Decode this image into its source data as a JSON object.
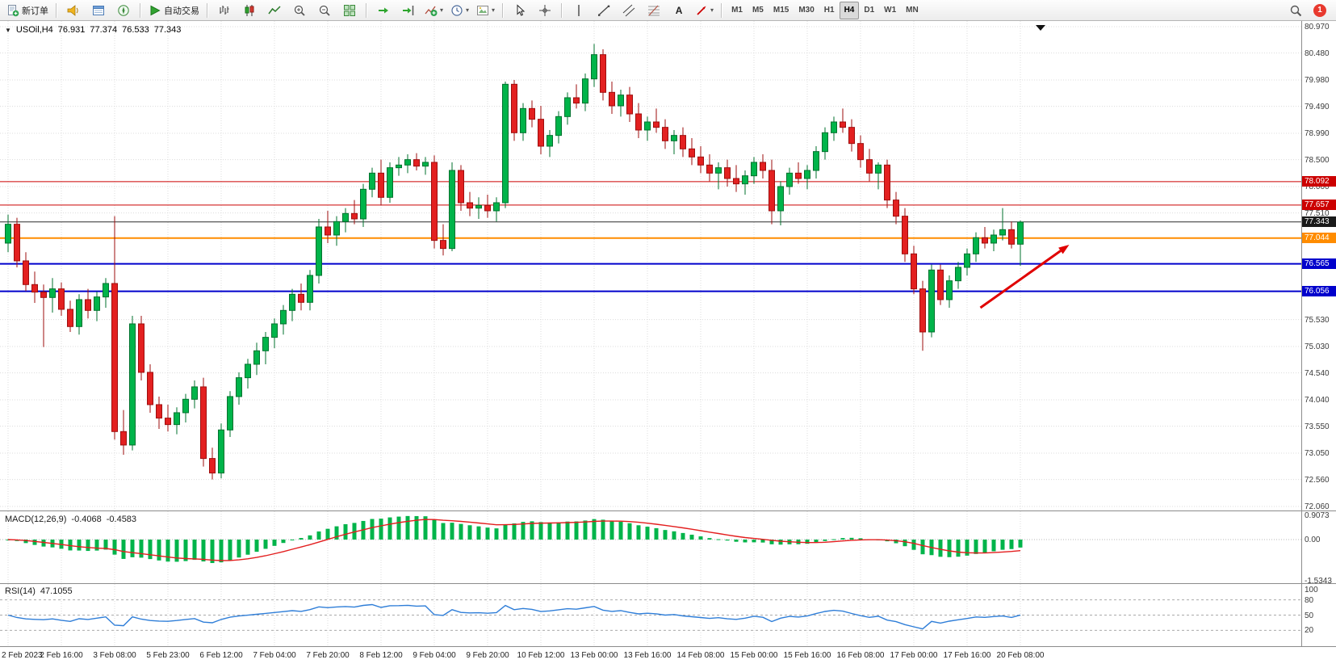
{
  "window": {
    "title_marker": "▼",
    "corner_marker": "▼"
  },
  "toolbar": {
    "new_order": "新订单",
    "autotrading": "自动交易",
    "caret": "▾",
    "timeframes": [
      "M1",
      "M5",
      "M15",
      "M30",
      "H1",
      "H4",
      "D1",
      "W1",
      "MN"
    ],
    "active_timeframe": "H4",
    "notification_count": "1"
  },
  "chart_header": {
    "symbol_period": "USOil,H4",
    "open": "76.931",
    "high": "77.374",
    "low": "76.533",
    "close": "77.343"
  },
  "indicator_labels": {
    "macd_name": "MACD(12,26,9)",
    "macd_value": "-0.4068",
    "macd_signal": "-0.4583",
    "rsi_name": "RSI(14)",
    "rsi_value": "47.1055"
  },
  "axes": {
    "price_ticks": [
      80.97,
      80.48,
      79.98,
      79.49,
      78.99,
      78.5,
      78.0,
      77.51,
      75.53,
      75.03,
      74.54,
      74.04,
      73.55,
      73.05,
      72.56,
      72.06
    ],
    "macd_ticks": [
      {
        "label": "0.9073",
        "value": 0.9073
      },
      {
        "label": "0.00",
        "value": 0
      },
      {
        "label": "-1.5343",
        "value": -1.5343
      }
    ],
    "rsi_ticks": [
      {
        "label": "100",
        "value": 100
      },
      {
        "label": "80",
        "value": 80
      },
      {
        "label": "50",
        "value": 50
      },
      {
        "label": "20",
        "value": 20
      }
    ],
    "time_labels": [
      "2 Feb 2023",
      "2 Feb 16:00",
      "3 Feb 08:00",
      "5 Feb 23:00",
      "6 Feb 12:00",
      "7 Feb 04:00",
      "7 Feb 20:00",
      "8 Feb 12:00",
      "9 Feb 04:00",
      "9 Feb 20:00",
      "10 Feb 12:00",
      "13 Feb 00:00",
      "13 Feb 16:00",
      "14 Feb 08:00",
      "15 Feb 00:00",
      "15 Feb 16:00",
      "16 Feb 08:00",
      "17 Feb 00:00",
      "17 Feb 16:00",
      "20 Feb 08:00"
    ]
  },
  "chart_data": {
    "type": "candlestick",
    "symbol": "USOil",
    "period": "H4",
    "bars_per_label": 6,
    "ylim": [
      71.99,
      81.075
    ],
    "ohlc": [
      [
        76.95,
        77.48,
        76.78,
        77.3
      ],
      [
        77.3,
        77.42,
        76.5,
        76.62
      ],
      [
        76.62,
        76.78,
        76.06,
        76.18
      ],
      [
        76.18,
        76.42,
        75.84,
        76.04
      ],
      [
        76.04,
        76.18,
        75.02,
        75.94
      ],
      [
        75.94,
        76.3,
        75.66,
        76.1
      ],
      [
        76.1,
        76.22,
        75.6,
        75.72
      ],
      [
        75.72,
        75.88,
        75.3,
        75.4
      ],
      [
        75.4,
        76.0,
        75.25,
        75.9
      ],
      [
        75.9,
        76.1,
        75.55,
        75.7
      ],
      [
        75.7,
        76.05,
        75.5,
        75.95
      ],
      [
        75.95,
        76.3,
        75.75,
        76.2
      ],
      [
        76.2,
        77.45,
        73.3,
        73.45
      ],
      [
        73.45,
        73.85,
        73.02,
        73.2
      ],
      [
        73.2,
        75.6,
        73.1,
        75.45
      ],
      [
        75.45,
        75.6,
        74.4,
        74.55
      ],
      [
        74.55,
        74.7,
        73.8,
        73.95
      ],
      [
        73.95,
        74.1,
        73.5,
        73.7
      ],
      [
        73.7,
        73.95,
        73.45,
        73.58
      ],
      [
        73.58,
        73.9,
        73.4,
        73.8
      ],
      [
        73.8,
        74.15,
        73.62,
        74.05
      ],
      [
        74.05,
        74.4,
        73.88,
        74.28
      ],
      [
        74.28,
        74.45,
        72.8,
        72.95
      ],
      [
        72.95,
        73.15,
        72.56,
        72.68
      ],
      [
        72.68,
        73.6,
        72.58,
        73.48
      ],
      [
        73.48,
        74.2,
        73.35,
        74.1
      ],
      [
        74.1,
        74.55,
        73.95,
        74.45
      ],
      [
        74.45,
        74.8,
        74.25,
        74.7
      ],
      [
        74.7,
        75.1,
        74.5,
        74.95
      ],
      [
        74.95,
        75.3,
        74.7,
        75.2
      ],
      [
        75.2,
        75.55,
        75.0,
        75.45
      ],
      [
        75.45,
        75.8,
        75.25,
        75.7
      ],
      [
        75.7,
        76.1,
        75.5,
        76.0
      ],
      [
        76.0,
        76.2,
        75.7,
        75.85
      ],
      [
        75.85,
        76.45,
        75.7,
        76.35
      ],
      [
        76.35,
        77.4,
        76.2,
        77.25
      ],
      [
        77.25,
        77.55,
        76.95,
        77.1
      ],
      [
        77.1,
        77.45,
        76.9,
        77.35
      ],
      [
        77.35,
        77.6,
        77.15,
        77.5
      ],
      [
        77.5,
        77.75,
        77.3,
        77.4
      ],
      [
        77.4,
        78.05,
        77.25,
        77.95
      ],
      [
        77.95,
        78.35,
        77.8,
        78.25
      ],
      [
        78.25,
        78.5,
        77.65,
        77.8
      ],
      [
        77.8,
        78.45,
        77.7,
        78.35
      ],
      [
        78.35,
        78.55,
        78.2,
        78.4
      ],
      [
        78.4,
        78.6,
        78.25,
        78.5
      ],
      [
        78.5,
        78.62,
        78.3,
        78.38
      ],
      [
        78.38,
        78.55,
        78.22,
        78.45
      ],
      [
        78.45,
        78.58,
        76.85,
        77.0
      ],
      [
        77.0,
        77.3,
        76.72,
        76.85
      ],
      [
        76.85,
        78.45,
        76.8,
        78.3
      ],
      [
        78.3,
        78.4,
        77.55,
        77.7
      ],
      [
        77.7,
        77.9,
        77.45,
        77.6
      ],
      [
        77.6,
        77.8,
        77.4,
        77.65
      ],
      [
        77.65,
        77.85,
        77.42,
        77.55
      ],
      [
        77.55,
        77.8,
        77.35,
        77.7
      ],
      [
        77.7,
        79.95,
        77.6,
        79.9
      ],
      [
        79.9,
        79.98,
        78.85,
        79.0
      ],
      [
        79.0,
        79.55,
        78.85,
        79.45
      ],
      [
        79.45,
        79.6,
        79.1,
        79.25
      ],
      [
        79.25,
        79.5,
        78.6,
        78.75
      ],
      [
        78.75,
        79.05,
        78.55,
        78.95
      ],
      [
        78.95,
        79.4,
        78.8,
        79.3
      ],
      [
        79.3,
        79.75,
        79.15,
        79.65
      ],
      [
        79.65,
        79.9,
        79.45,
        79.55
      ],
      [
        79.55,
        80.1,
        79.4,
        80.0
      ],
      [
        80.0,
        80.65,
        79.85,
        80.45
      ],
      [
        80.45,
        80.55,
        79.6,
        79.75
      ],
      [
        79.75,
        79.95,
        79.35,
        79.5
      ],
      [
        79.5,
        79.8,
        79.3,
        79.7
      ],
      [
        79.7,
        79.85,
        79.2,
        79.35
      ],
      [
        79.35,
        79.55,
        78.9,
        79.05
      ],
      [
        79.05,
        79.3,
        78.85,
        79.2
      ],
      [
        79.2,
        79.45,
        79.0,
        79.1
      ],
      [
        79.1,
        79.25,
        78.7,
        78.85
      ],
      [
        78.85,
        79.05,
        78.6,
        78.95
      ],
      [
        78.95,
        79.1,
        78.55,
        78.7
      ],
      [
        78.7,
        78.9,
        78.4,
        78.55
      ],
      [
        78.55,
        78.75,
        78.25,
        78.4
      ],
      [
        78.4,
        78.6,
        78.1,
        78.25
      ],
      [
        78.25,
        78.45,
        77.95,
        78.35
      ],
      [
        78.35,
        78.5,
        78.0,
        78.15
      ],
      [
        78.15,
        78.4,
        77.9,
        78.05
      ],
      [
        78.05,
        78.3,
        77.85,
        78.2
      ],
      [
        78.2,
        78.55,
        78.05,
        78.45
      ],
      [
        78.45,
        78.6,
        78.15,
        78.3
      ],
      [
        78.3,
        78.5,
        77.3,
        77.55
      ],
      [
        77.55,
        78.1,
        77.28,
        78.0
      ],
      [
        78.0,
        78.35,
        77.85,
        78.25
      ],
      [
        78.25,
        78.45,
        78.05,
        78.15
      ],
      [
        78.15,
        78.4,
        77.95,
        78.3
      ],
      [
        78.3,
        78.75,
        78.15,
        78.65
      ],
      [
        78.65,
        79.1,
        78.5,
        79.0
      ],
      [
        79.0,
        79.3,
        78.85,
        79.2
      ],
      [
        79.2,
        79.45,
        79.0,
        79.1
      ],
      [
        79.1,
        79.25,
        78.65,
        78.8
      ],
      [
        78.8,
        78.95,
        78.35,
        78.5
      ],
      [
        78.5,
        78.7,
        78.1,
        78.25
      ],
      [
        78.25,
        78.45,
        77.95,
        78.4
      ],
      [
        78.4,
        78.5,
        77.6,
        77.75
      ],
      [
        77.75,
        77.9,
        77.3,
        77.45
      ],
      [
        77.45,
        77.6,
        76.6,
        76.75
      ],
      [
        76.75,
        76.9,
        76.0,
        76.1
      ],
      [
        76.1,
        76.25,
        74.95,
        75.3
      ],
      [
        75.3,
        76.55,
        75.2,
        76.45
      ],
      [
        76.45,
        76.55,
        75.8,
        75.9
      ],
      [
        75.9,
        76.35,
        75.75,
        76.25
      ],
      [
        76.25,
        76.6,
        76.1,
        76.5
      ],
      [
        76.5,
        76.85,
        76.35,
        76.75
      ],
      [
        76.75,
        77.15,
        76.6,
        77.05
      ],
      [
        77.05,
        77.25,
        76.85,
        76.95
      ],
      [
        76.95,
        77.2,
        76.8,
        77.1
      ],
      [
        77.1,
        77.6,
        77.0,
        77.2
      ],
      [
        77.2,
        77.35,
        76.85,
        76.93
      ],
      [
        76.93,
        77.37,
        76.53,
        77.34
      ]
    ],
    "horizontal_lines": [
      {
        "price": 78.092,
        "color": "#cc0000",
        "width": 1,
        "label_bg": "#cc0000"
      },
      {
        "price": 77.657,
        "color": "#cc0000",
        "width": 1,
        "label_bg": "#cc0000"
      },
      {
        "price": 77.343,
        "color": "#2b2b2b",
        "width": 1,
        "label_bg": "#1a1a1a"
      },
      {
        "price": 77.044,
        "color": "#ff8c00",
        "width": 2,
        "label_bg": "#ff8c00"
      },
      {
        "price": 76.565,
        "color": "#0000cc",
        "width": 2,
        "label_bg": "#0000cc"
      },
      {
        "price": 76.056,
        "color": "#0000cc",
        "width": 2,
        "label_bg": "#0000cc"
      }
    ],
    "arrow": {
      "from_bar": 109.5,
      "from_price": 75.75,
      "to_bar": 119.5,
      "to_price": 76.92,
      "color": "#e00000"
    },
    "colors": {
      "up": "#00b44a",
      "up_border": "#00722e",
      "down": "#e32020",
      "down_border": "#9e0e0e",
      "macd_histogram": "#00b44a",
      "macd_signal": "#e31e1e",
      "rsi_line": "#2f7ed8",
      "grid": "#dcdcdc"
    },
    "indicators": {
      "macd": {
        "fast": 12,
        "slow": 26,
        "signal": 9,
        "range": [
          -1.5343,
          0.9073
        ]
      },
      "rsi": {
        "period": 14,
        "levels": [
          20,
          50,
          80
        ],
        "range": [
          0,
          100
        ]
      }
    }
  }
}
